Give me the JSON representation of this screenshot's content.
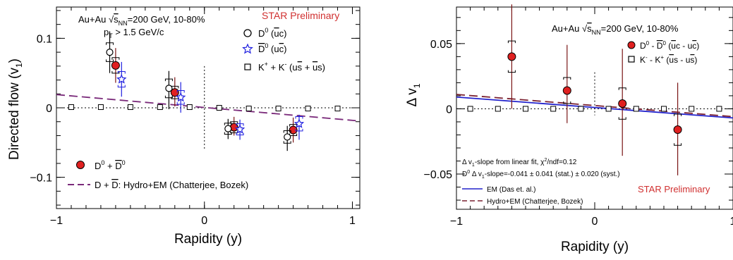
{
  "chart_data": [
    {
      "type": "scatter",
      "title": "",
      "xlabel": "Rapidity (y)",
      "ylabel": "Directed flow (v",
      "ylabel_sub": "1",
      "ylabel_close": ")",
      "xlim": [
        -1.0,
        1.05
      ],
      "ylim": [
        -0.145,
        0.145
      ],
      "xticks": [
        "-1",
        "0",
        "1"
      ],
      "yticks": [
        "-0.1",
        "0",
        "0.1"
      ],
      "labels": {
        "system_pre": "Au+Au ",
        "system_sqrt": "s",
        "system_sub": "NN",
        "system_post": "=200 GeV, 10-80%",
        "pt_pre": "p",
        "pt_sub": "T",
        "pt_post": " > 1.5 GeV/c",
        "star": "STAR Preliminary"
      },
      "legend_top": [
        {
          "marker": "open-circle",
          "label_pre": "D",
          "label_sup": "0",
          "label_post": " (",
          "bar": "u",
          "label_end": "c)"
        },
        {
          "marker": "open-star",
          "label_pre": "D",
          "label_sup": "0",
          "label_post": " (u",
          "bar": "c",
          "label_end": ")",
          "overline_d": true
        },
        {
          "marker": "open-square",
          "label_pre": "K",
          "label_sup": "+",
          "label_post": " + K",
          "label_sup2": "-",
          "label_end": " (us̅ + u̅s)"
        }
      ],
      "legend_bottom": [
        {
          "marker": "filled-circle",
          "label": "D⁰ + D̅⁰"
        },
        {
          "marker": "dashed-line",
          "label": "D + D̅: Hydro+EM (Chatterjee, Bozek)"
        }
      ],
      "series": [
        {
          "name": "D0 + D0bar",
          "marker": "filled-circle",
          "color": "#e02020",
          "x": [
            -0.6,
            -0.2,
            0.2,
            0.6
          ],
          "y": [
            0.061,
            0.022,
            -0.028,
            -0.032
          ],
          "err_low": [
            0.025,
            0.02,
            0.012,
            0.018
          ],
          "err_high": [
            0.025,
            0.022,
            0.015,
            0.018
          ]
        },
        {
          "name": "D0 (ubar c)",
          "marker": "open-circle",
          "color": "#000000",
          "x": [
            -0.64,
            -0.24,
            0.16,
            0.56
          ],
          "y": [
            0.08,
            0.028,
            -0.03,
            -0.042
          ],
          "err_low": [
            0.03,
            0.03,
            0.015,
            0.02
          ],
          "err_high": [
            0.03,
            0.025,
            0.014,
            0.016
          ]
        },
        {
          "name": "D0bar (u cbar)",
          "marker": "open-star",
          "color": "#2020e0",
          "x": [
            -0.56,
            -0.16,
            0.24,
            0.64
          ],
          "y": [
            0.041,
            0.015,
            -0.031,
            -0.023
          ],
          "err_low": [
            0.025,
            0.022,
            0.015,
            0.023
          ],
          "err_high": [
            0.025,
            0.022,
            0.014,
            0.013
          ]
        },
        {
          "name": "K+ + K-",
          "marker": "open-square",
          "color": "#000000",
          "x": [
            -0.9,
            -0.7,
            -0.5,
            -0.3,
            -0.1,
            0.1,
            0.3,
            0.5,
            0.7,
            0.9
          ],
          "y": [
            0.001,
            0.001,
            0.001,
            0.001,
            0.001,
            0.0,
            -0.001,
            -0.001,
            -0.001,
            -0.001
          ]
        }
      ],
      "model": {
        "name": "D + Dbar: Hydro+EM (Chatterjee, Bozek)",
        "color": "#7a2a7a",
        "x": [
          -1.0,
          1.05
        ],
        "y": [
          0.019,
          -0.019
        ]
      }
    },
    {
      "type": "scatter",
      "title": "",
      "xlabel": "Rapidity (y)",
      "ylabel": "Δ v",
      "ylabel_sub": "1",
      "xlim": [
        -1.0,
        1.0
      ],
      "ylim": [
        -0.077,
        0.078
      ],
      "xticks": [
        "-1",
        "0",
        "1"
      ],
      "yticks": [
        "-0.05",
        "0",
        "0.05"
      ],
      "labels": {
        "system_pre": "Au+Au ",
        "system_sqrt": "s",
        "system_sub": "NN",
        "system_post": "=200 GeV, 10-80%",
        "fit_line1": "Δ v₁-slope from linear fit, χ²/ndf=0.12",
        "fit_line2": "D⁰ Δ v₁-slope=-0.041 ± 0.041 (stat.) ± 0.020 (syst.)",
        "star": "STAR Preliminary"
      },
      "legend_top": [
        {
          "marker": "filled-circle",
          "label": "D⁰ - D̅⁰ (u̅c - uc̅)"
        },
        {
          "marker": "open-square",
          "label": "K⁻ - K⁺ (u̅s - us̅)"
        }
      ],
      "legend_bottom": [
        {
          "marker": "solid-line",
          "color": "#2222cc",
          "label": "EM (Das et. al.)"
        },
        {
          "marker": "dashed-line",
          "color": "#7a2030",
          "label": "Hydro+EM (Chatterjee, Bozek)"
        }
      ],
      "series": [
        {
          "name": "D0 - D0bar",
          "marker": "filled-circle",
          "color": "#e02020",
          "x": [
            -0.6,
            -0.2,
            0.2,
            0.6
          ],
          "y": [
            0.04,
            0.014,
            0.004,
            -0.016
          ],
          "err_low": [
            0.04,
            0.025,
            0.04,
            0.035
          ],
          "err_high": [
            0.04,
            0.035,
            0.042,
            0.036
          ],
          "syst": [
            0.012,
            0.01,
            0.012,
            0.012
          ]
        },
        {
          "name": "K- - K+",
          "marker": "open-square",
          "color": "#000000",
          "x": [
            -0.9,
            -0.7,
            -0.5,
            -0.3,
            -0.1,
            0.1,
            0.3,
            0.5,
            0.7,
            0.9
          ],
          "y": [
            0,
            0,
            0,
            0,
            0,
            0,
            0,
            0,
            0,
            0
          ]
        }
      ],
      "models": [
        {
          "name": "EM (Das et. al.)",
          "color": "#2222cc",
          "style": "solid",
          "x": [
            -1.0,
            1.0
          ],
          "y": [
            0.009,
            -0.007
          ]
        },
        {
          "name": "Hydro+EM (Chatterjee, Bozek)",
          "color": "#7a2030",
          "style": "dashed",
          "x": [
            -1.0,
            1.0
          ],
          "y": [
            0.011,
            -0.006
          ]
        }
      ]
    }
  ]
}
